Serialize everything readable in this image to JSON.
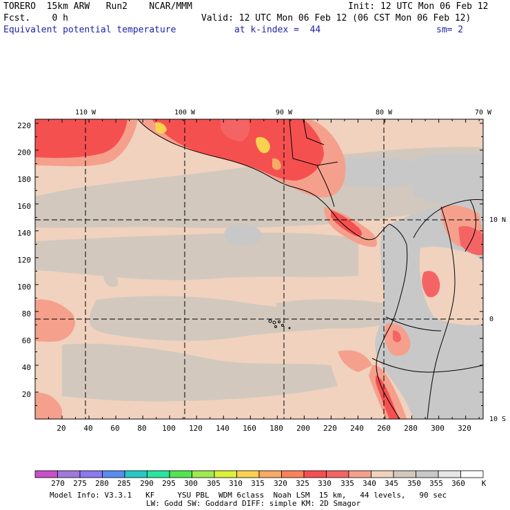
{
  "header": {
    "model": "TORERO  15km ARW   Run2    NCAR/MMM",
    "init": "Init: 12 UTC Mon 06 Feb 12",
    "fcst": "Fcst.    0 h",
    "valid": "Valid: 12 UTC Mon 06 Feb 12 (06 CST Mon 06 Feb 12)",
    "field": "Equivalent potential temperature",
    "kindex": "at k-index =  44",
    "sm": "sm= 2"
  },
  "top_lon_labels": [
    "110 W",
    "100 W",
    "90 W",
    "80 W",
    "70 W"
  ],
  "right_lat_labels": [
    "10 N",
    "0",
    "10 S"
  ],
  "left_axis_labels": [
    "220",
    "200",
    "180",
    "160",
    "140",
    "120",
    "100",
    "80",
    "60",
    "40",
    "20"
  ],
  "bottom_axis_labels": [
    "20",
    "40",
    "60",
    "80",
    "100",
    "120",
    "140",
    "160",
    "180",
    "200",
    "220",
    "240",
    "260",
    "280",
    "300",
    "320"
  ],
  "colorbar": {
    "labels": [
      "270",
      "275",
      "280",
      "285",
      "290",
      "295",
      "300",
      "305",
      "310",
      "315",
      "320",
      "325",
      "330",
      "335",
      "340",
      "345",
      "350",
      "355",
      "360"
    ],
    "unit": "K",
    "colors": [
      "#c850c8",
      "#a078dc",
      "#8c78f0",
      "#5a8cf0",
      "#28c8c8",
      "#28e6a0",
      "#50e650",
      "#a0ea50",
      "#dcf03c",
      "#fad250",
      "#faaa64",
      "#fa825a",
      "#f55050",
      "#f56464",
      "#f5a08c",
      "#f0d2be",
      "#d2c8be",
      "#c8c8c8",
      "#e6e6e6",
      "#ffffff"
    ]
  },
  "footer": {
    "line1": "Model Info: V3.3.1   KF     YSU PBL  WDM 6class  Noah LSM  15 km,   44 levels,   90 sec",
    "line2": "LW: Godd SW: Goddard DIFF: simple KM: 2D Smagor"
  }
}
